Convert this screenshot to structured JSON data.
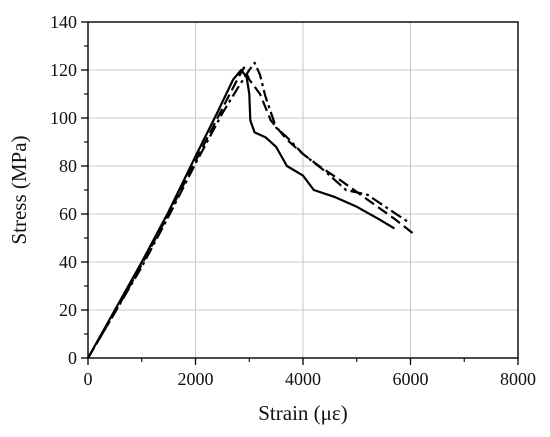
{
  "chart_data": {
    "type": "line",
    "title": "",
    "xlabel": "Strain (με)",
    "ylabel": "Stress (MPa)",
    "xlim": [
      0,
      8000
    ],
    "ylim": [
      0,
      140
    ],
    "x_ticks": [
      0,
      2000,
      4000,
      6000,
      8000
    ],
    "y_ticks": [
      0,
      20,
      40,
      60,
      80,
      100,
      120,
      140
    ],
    "x_tick_labels": [
      "0",
      "2000",
      "4000",
      "6000",
      "8000"
    ],
    "y_tick_labels": [
      "0",
      "20",
      "40",
      "60",
      "80",
      "100",
      "120",
      "140"
    ],
    "grid": true,
    "legend": "none",
    "series": [
      {
        "style": "solid",
        "color": "#000000",
        "points": [
          [
            0,
            0
          ],
          [
            500,
            20
          ],
          [
            1000,
            40
          ],
          [
            1500,
            61
          ],
          [
            2000,
            84
          ],
          [
            2400,
            102
          ],
          [
            2700,
            116
          ],
          [
            2850,
            120
          ],
          [
            2950,
            117
          ],
          [
            3000,
            110
          ],
          [
            3020,
            99
          ],
          [
            3100,
            94
          ],
          [
            3300,
            92
          ],
          [
            3500,
            88
          ],
          [
            3700,
            80
          ],
          [
            4000,
            76
          ],
          [
            4200,
            70
          ],
          [
            4600,
            67
          ],
          [
            5000,
            63
          ],
          [
            5400,
            58
          ],
          [
            5700,
            54
          ]
        ]
      },
      {
        "style": "dashed",
        "color": "#000000",
        "points": [
          [
            0,
            0
          ],
          [
            500,
            19
          ],
          [
            1000,
            39
          ],
          [
            1500,
            60
          ],
          [
            2000,
            82
          ],
          [
            2500,
            104
          ],
          [
            2800,
            117
          ],
          [
            2900,
            121
          ],
          [
            3000,
            116
          ],
          [
            3200,
            110
          ],
          [
            3400,
            99
          ],
          [
            3700,
            91
          ],
          [
            4000,
            85
          ],
          [
            4300,
            80
          ],
          [
            4700,
            74
          ],
          [
            5200,
            66
          ],
          [
            5700,
            58
          ],
          [
            6100,
            51
          ]
        ]
      },
      {
        "style": "dash-dot",
        "color": "#000000",
        "points": [
          [
            0,
            0
          ],
          [
            500,
            19
          ],
          [
            1000,
            38
          ],
          [
            1500,
            59
          ],
          [
            2000,
            81
          ],
          [
            2500,
            102
          ],
          [
            2800,
            113
          ],
          [
            3000,
            120
          ],
          [
            3100,
            123
          ],
          [
            3200,
            118
          ],
          [
            3300,
            109
          ],
          [
            3500,
            96
          ],
          [
            3700,
            92
          ],
          [
            4000,
            85
          ],
          [
            4400,
            78
          ],
          [
            4800,
            70
          ],
          [
            5200,
            68
          ],
          [
            5600,
            62
          ],
          [
            6000,
            56
          ]
        ]
      }
    ]
  }
}
